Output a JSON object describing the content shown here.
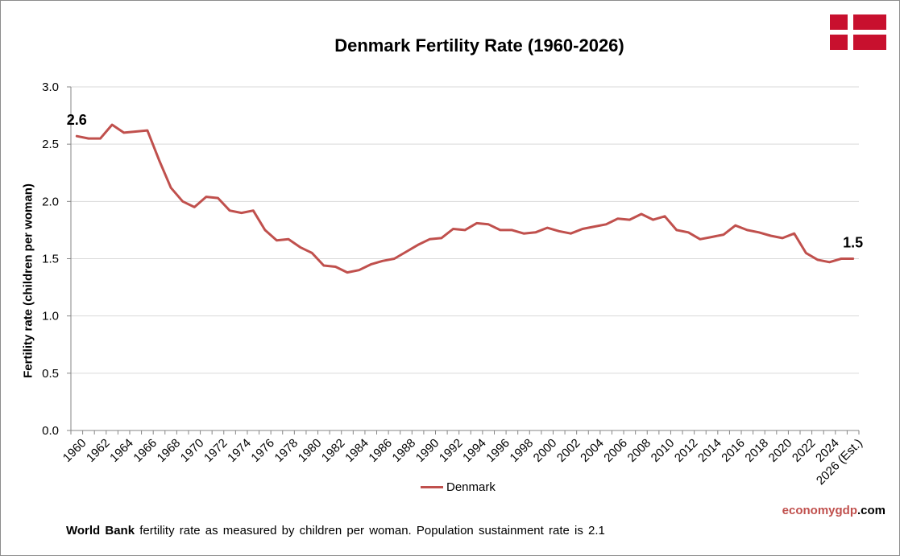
{
  "brand": {
    "part1": "economygdp",
    "part2": ".com"
  },
  "footer": {
    "source": "World Bank",
    "note": " fertility rate as measured by children per woman.  Population sustainment rate is 2.1"
  },
  "flag": {
    "red": "#c8102e",
    "white": "#ffffff"
  },
  "chart_data": {
    "type": "line",
    "title": "Denmark Fertility Rate (1960-2026)",
    "ylabel": "Fertility rate (children per woman)",
    "xlabel": "",
    "ylim": [
      0,
      3
    ],
    "yticks": [
      "0.0",
      "0.5",
      "1.0",
      "1.5",
      "2.0",
      "2.5",
      "3.0"
    ],
    "grid": true,
    "legend": "bottom",
    "categories": [
      "1960",
      "1961",
      "1962",
      "1963",
      "1964",
      "1965",
      "1966",
      "1967",
      "1968",
      "1969",
      "1970",
      "1971",
      "1972",
      "1973",
      "1974",
      "1975",
      "1976",
      "1977",
      "1978",
      "1979",
      "1980",
      "1981",
      "1982",
      "1983",
      "1984",
      "1985",
      "1986",
      "1987",
      "1988",
      "1989",
      "1990",
      "1991",
      "1992",
      "1993",
      "1994",
      "1995",
      "1996",
      "1997",
      "1998",
      "1999",
      "2000",
      "2001",
      "2002",
      "2003",
      "2004",
      "2005",
      "2006",
      "2007",
      "2008",
      "2009",
      "2010",
      "2011",
      "2012",
      "2013",
      "2014",
      "2015",
      "2016",
      "2017",
      "2018",
      "2019",
      "2020",
      "2021",
      "2022",
      "2023",
      "2024",
      "2025",
      "2026 (Est.)"
    ],
    "tick_labels": [
      "1960",
      "1962",
      "1964",
      "1966",
      "1968",
      "1970",
      "1972",
      "1974",
      "1976",
      "1978",
      "1980",
      "1982",
      "1984",
      "1986",
      "1988",
      "1990",
      "1992",
      "1994",
      "1996",
      "1998",
      "2000",
      "2002",
      "2004",
      "2006",
      "2008",
      "2010",
      "2012",
      "2014",
      "2016",
      "2018",
      "2020",
      "2022",
      "2024",
      "2026 (Est.)"
    ],
    "series": [
      {
        "name": "Denmark",
        "color": "#c0504d",
        "values": [
          2.57,
          2.55,
          2.55,
          2.67,
          2.6,
          2.61,
          2.62,
          2.36,
          2.12,
          2.0,
          1.95,
          2.04,
          2.03,
          1.92,
          1.9,
          1.92,
          1.75,
          1.66,
          1.67,
          1.6,
          1.55,
          1.44,
          1.43,
          1.38,
          1.4,
          1.45,
          1.48,
          1.5,
          1.56,
          1.62,
          1.67,
          1.68,
          1.76,
          1.75,
          1.81,
          1.8,
          1.75,
          1.75,
          1.72,
          1.73,
          1.77,
          1.74,
          1.72,
          1.76,
          1.78,
          1.8,
          1.85,
          1.84,
          1.89,
          1.84,
          1.87,
          1.75,
          1.73,
          1.67,
          1.69,
          1.71,
          1.79,
          1.75,
          1.73,
          1.7,
          1.68,
          1.72,
          1.55,
          1.49,
          1.47,
          1.5,
          1.5
        ]
      }
    ],
    "annotations": [
      {
        "category": "1960",
        "label": "2.6"
      },
      {
        "category": "2026 (Est.)",
        "label": "1.5"
      }
    ]
  }
}
